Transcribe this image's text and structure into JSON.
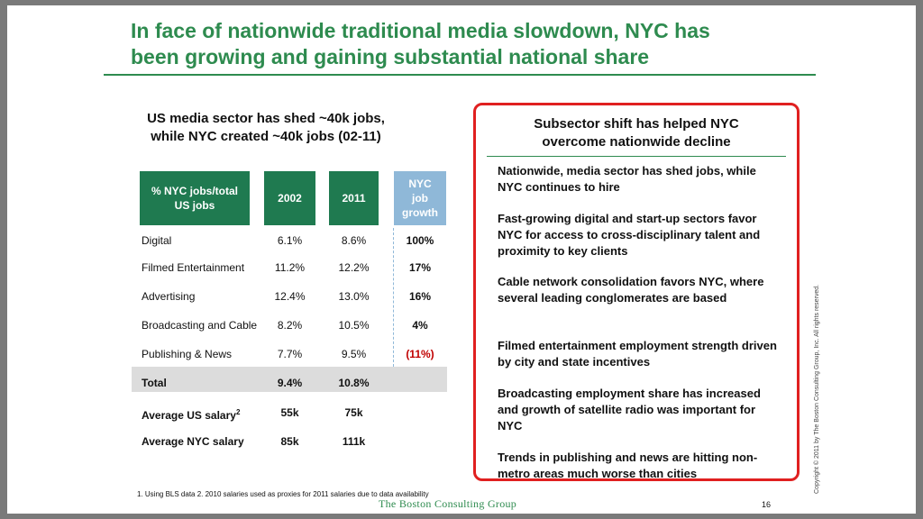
{
  "title_line1": "In face of nationwide traditional media slowdown, NYC has",
  "title_line2": "been growing and gaining substantial national share",
  "left": {
    "heading_line1": "US media sector has shed ~40k jobs,",
    "heading_line2": "while NYC created ~40k jobs (02-11)",
    "table": {
      "header_share": "% NYC jobs/total US jobs",
      "header_2002": "2002",
      "header_2011": "2011",
      "header_growth_1": "NYC",
      "header_growth_2": "job",
      "header_growth_3": "growth",
      "rows": [
        {
          "label": "Digital",
          "y2002": "6.1%",
          "y2011": "8.6%",
          "growth": "100%"
        },
        {
          "label": "Filmed Entertainment",
          "y2002": "11.2%",
          "y2011": "12.2%",
          "growth": "17%"
        },
        {
          "label": "Advertising",
          "y2002": "12.4%",
          "y2011": "13.0%",
          "growth": "16%"
        },
        {
          "label": "Broadcasting and Cable",
          "y2002": "8.2%",
          "y2011": "10.5%",
          "growth": "4%"
        },
        {
          "label": "Publishing & News",
          "y2002": "7.7%",
          "y2011": "9.5%",
          "growth": "(11%)"
        }
      ],
      "total": {
        "label": "Total",
        "y2002": "9.4%",
        "y2011": "10.8%"
      },
      "salary_us": {
        "label": "Average US salary",
        "sup": "2",
        "y2002": "55k",
        "y2011": "75k"
      },
      "salary_nyc": {
        "label": "Average NYC salary",
        "y2002": "85k",
        "y2011": "111k"
      }
    }
  },
  "right": {
    "heading_line1": "Subsector shift has helped NYC",
    "heading_line2": "overcome nationwide decline",
    "points": [
      "Nationwide, media sector has shed jobs, while NYC continues to hire",
      "Fast-growing digital and start-up sectors favor NYC for access to cross-disciplinary talent and proximity to key clients",
      "Cable network consolidation favors NYC, where several leading conglomerates are based",
      "Filmed entertainment employment strength driven by city and state incentives",
      "Broadcasting employment share has increased and growth of satellite radio was important for NYC",
      "Trends in publishing and news are hitting non-metro areas much worse than cities"
    ]
  },
  "footnote": "1. Using BLS data  2. 2010 salaries used as proxies for 2011 salaries due to data availability",
  "footer_logo": "The Boston Consulting Group",
  "page_number": "16",
  "copyright": "Copyright © 2011 by The Boston Consulting Group, Inc. All rights reserved.",
  "colors": {
    "brand_green": "#2e8b4f",
    "header_green": "#1f7a50",
    "growth_blue": "#8fb8d8",
    "highlight_red": "#e02020",
    "negative_red": "#c00000"
  }
}
